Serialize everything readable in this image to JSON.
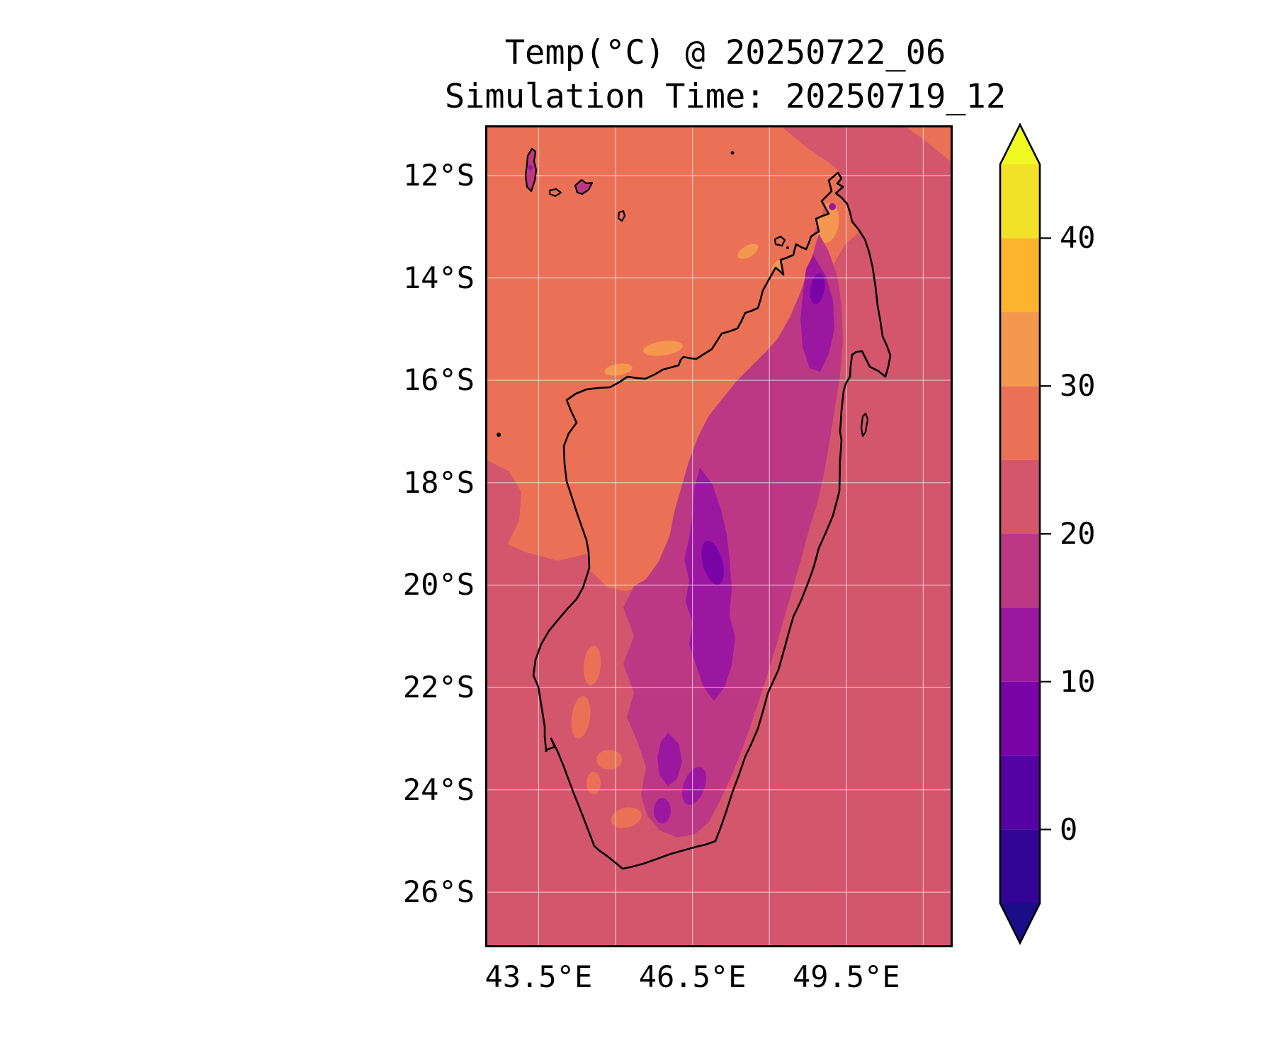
{
  "figure": {
    "title": "Temp(°C) @ 20250722_06",
    "subtitle": "Simulation Time: 20250719_12"
  },
  "map": {
    "y_tick_labels": [
      "12°S",
      "14°S",
      "16°S",
      "18°S",
      "20°S",
      "22°S",
      "24°S",
      "26°S"
    ],
    "y_tick_deg_south": [
      12,
      14,
      16,
      18,
      20,
      22,
      24,
      26
    ],
    "x_tick_labels": [
      "43.5°E",
      "46.5°E",
      "49.5°E"
    ],
    "x_tick_deg_east": [
      43.5,
      46.5,
      49.5
    ],
    "grid_lons_deg_east": [
      43.5,
      45,
      46.5,
      48,
      49.5,
      51
    ],
    "grid_lats_deg_south": [
      12,
      14,
      16,
      18,
      20,
      22,
      24,
      26
    ],
    "extent": {
      "lon_min": 42.5,
      "lon_max": 51.5,
      "lat_south_min": 11.1,
      "lat_south_max": 27.0
    }
  },
  "colorbar": {
    "tick_labels": [
      "40",
      "30",
      "20",
      "10",
      "0"
    ],
    "tick_values": [
      40,
      30,
      20,
      10,
      0
    ],
    "levels_celsius": [
      -5,
      0,
      5,
      10,
      15,
      20,
      25,
      30,
      35,
      40,
      45
    ],
    "extend": "both",
    "colormap": "plasma",
    "extend_low_color": "#1b0c87",
    "extend_high_color": "#f1f922",
    "segment_colors_bottom_to_top": [
      "#320597",
      "#5402a3",
      "#7a03a8",
      "#9c17a0",
      "#bc3884",
      "#d4566d",
      "#eb7156",
      "#f49850",
      "#fdb32e",
      "#f2e227"
    ],
    "band_colors": {
      "-5-0": "#320597",
      "0-5": "#5402a3",
      "5-10": "#7a03a8",
      "10-15": "#9c17a0",
      "15-20": "#bc3884",
      "20-25": "#d4566d",
      "25-30": "#eb7156",
      "30-35": "#f49850",
      "35-40": "#fdb32e",
      "40-45": "#f2e227"
    }
  },
  "chart_data": {
    "type": "heatmap",
    "title": "Temp(°C) @ 20250722_06",
    "subtitle": "Simulation Time: 20250719_12",
    "variable": "Temp",
    "units": "°C",
    "valid_time": "20250722_06",
    "simulation_time": "20250719_12",
    "x_axis": {
      "tick_labels": [
        "43.5°E",
        "46.5°E",
        "49.5°E"
      ],
      "range_deg_east": [
        42.5,
        51.5
      ],
      "gridline_step_deg": 1.5
    },
    "y_axis": {
      "tick_labels": [
        "12°S",
        "14°S",
        "16°S",
        "18°S",
        "20°S",
        "22°S",
        "24°S",
        "26°S"
      ],
      "range_deg_south": [
        11.1,
        27.0
      ],
      "gridline_step_deg": 2
    },
    "colorbar": {
      "ticks": [
        0,
        10,
        20,
        30,
        40
      ],
      "levels_celsius": [
        -5,
        0,
        5,
        10,
        15,
        20,
        25,
        30,
        35,
        40,
        45
      ],
      "extend": "both",
      "colormap": "plasma"
    },
    "region": "Madagascar and surrounding ocean (Mozambique Channel / Indian Ocean), Comoros islands at top left",
    "field_summary": [
      {
        "area": "northwest ocean (Mozambique Channel)",
        "temp_band_c": "25-30"
      },
      {
        "area": "ocean east and south of Madagascar",
        "temp_band_c": "20-25"
      },
      {
        "area": "coastal northwest waters, scattered patches",
        "temp_band_c": "30-35"
      },
      {
        "area": "Madagascar northern and western lowlands",
        "temp_band_c": "25-30"
      },
      {
        "area": "mid-altitude belt of the island",
        "temp_band_c": "15-20"
      },
      {
        "area": "central and northern highlands spine",
        "temp_band_c": "10-15"
      },
      {
        "area": "coldest highland cores",
        "temp_band_c": "5-10"
      },
      {
        "area": "east coastal strip and far south of island",
        "temp_band_c": "20-25"
      },
      {
        "area": "Grande Comore island",
        "temp_band_c": "15-20 with 10-15 core"
      }
    ]
  }
}
